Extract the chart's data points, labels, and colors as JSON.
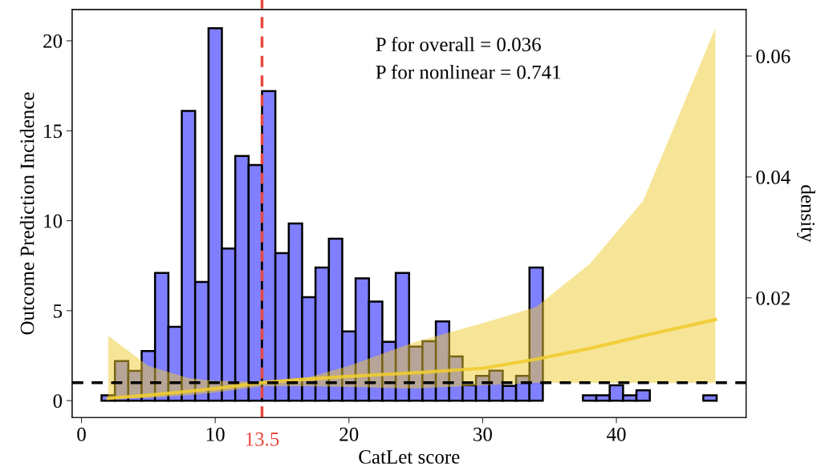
{
  "chart_data": {
    "type": "histogram",
    "xlabel": "CatLet score",
    "ylabel": "Outcome Prediction Incidence",
    "y2label": "density",
    "bins": [
      1.5,
      2.5,
      3.5,
      4.5,
      5.5,
      6.5,
      7.5,
      8.5,
      9.5,
      10.5,
      11.5,
      12.5,
      13.5,
      14.5,
      15.5,
      16.5,
      17.5,
      18.5,
      19.5,
      20.5,
      21.5,
      22.5,
      23.5,
      24.5,
      25.5,
      26.5,
      27.5,
      28.5,
      29.5,
      30.5,
      31.5,
      32.5,
      33.5,
      34.5,
      35.5,
      36.5,
      37.5,
      38.5,
      39.5,
      40.5,
      41.5,
      42.5,
      43.5,
      44.5,
      45.5,
      46.5,
      47.5
    ],
    "values": [
      0.3,
      2.2,
      1.65,
      2.75,
      7.1,
      4.1,
      16.1,
      6.6,
      20.7,
      8.45,
      13.6,
      13.1,
      17.2,
      8.2,
      9.85,
      5.75,
      7.4,
      9.0,
      3.85,
      6.8,
      5.5,
      3.27,
      7.1,
      3.0,
      3.3,
      4.4,
      2.45,
      0.85,
      1.38,
      1.66,
      0.82,
      1.38,
      7.4,
      0,
      0,
      0,
      0.3,
      0.3,
      0.85,
      0.3,
      0.57,
      0,
      0,
      0,
      0,
      0.3
    ],
    "color": "#7f7fff",
    "series": [
      {
        "type": "line",
        "color": "#f0cc30",
        "x": [
          2,
          5,
          8,
          10,
          13.5,
          17,
          20,
          25,
          30,
          34,
          38,
          42,
          47.4
        ],
        "values": [
          0.13,
          0.3,
          0.52,
          0.67,
          1.0,
          1.2,
          1.35,
          1.55,
          1.8,
          2.3,
          2.9,
          3.6,
          4.5
        ],
        "lower": [
          0.1,
          0.15,
          0.3,
          0.45,
          0.8,
          0.8,
          0.76,
          0.67,
          0.85,
          0.98,
          0.98,
          0.98,
          0.98
        ],
        "upper": [
          3.6,
          1.93,
          1.25,
          1.1,
          1.05,
          1.3,
          1.93,
          3.27,
          4.3,
          5.2,
          7.6,
          11.1,
          20.7
        ]
      }
    ],
    "xlim": [
      -0.7,
      49.7
    ],
    "xticks": [
      0,
      10,
      20,
      30,
      40
    ],
    "ylim": [
      -0.94,
      21.74
    ],
    "yticks": [
      0,
      5,
      10,
      15,
      20
    ],
    "y2lim": [
      0.0002,
      0.0677
    ],
    "y2ticks": [
      0.02,
      0.04,
      0.06
    ],
    "ref_lines": [
      {
        "axis": "y",
        "value": 1,
        "color": "#000000",
        "line_style": "dashed"
      },
      {
        "axis": "x",
        "value": 13.5,
        "label": "13.5",
        "color": "#e8483c",
        "line_style": "dashed"
      }
    ],
    "annotations": [
      "P for overall = 0.036",
      "P for nonlinear = 0.741"
    ],
    "grid": false,
    "legend": false
  }
}
